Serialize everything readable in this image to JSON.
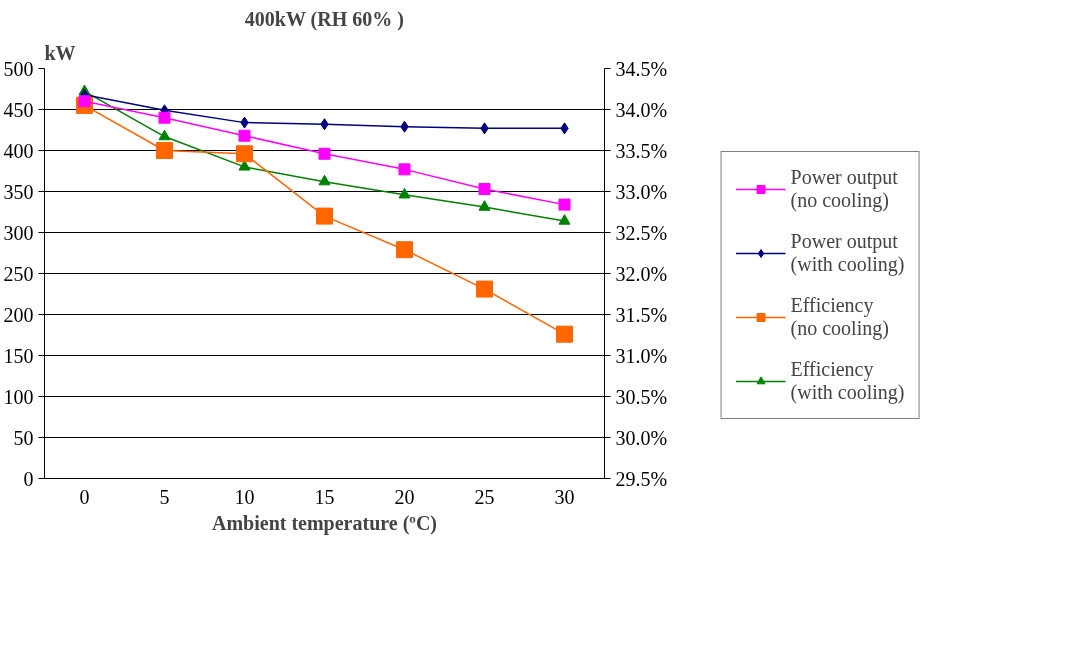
{
  "chart_data": {
    "type": "line",
    "title": "400kW (RH 60% )",
    "xlabel": "Ambient temperature (ºC)",
    "ylabel": "kW",
    "categories": [
      "0",
      "5",
      "10",
      "15",
      "20",
      "25",
      "30"
    ],
    "ylim": [
      0,
      500
    ],
    "yticks": [
      0,
      50,
      100,
      150,
      200,
      250,
      300,
      350,
      400,
      450,
      500
    ],
    "y2lim": [
      29.5,
      34.5
    ],
    "y2ticks": [
      {
        "value": 29.5,
        "label": "29.5%"
      },
      {
        "value": 30.0,
        "label": "30.0%"
      },
      {
        "value": 30.5,
        "label": "30.5%"
      },
      {
        "value": 31.0,
        "label": "31.0%"
      },
      {
        "value": 31.5,
        "label": "31.5%"
      },
      {
        "value": 32.0,
        "label": "32.0%"
      },
      {
        "value": 32.5,
        "label": "32.5%"
      },
      {
        "value": 33.0,
        "label": "33.0%"
      },
      {
        "value": 33.5,
        "label": "33.5%"
      },
      {
        "value": 34.0,
        "label": "34.0%"
      },
      {
        "value": 34.5,
        "label": "34.5%"
      }
    ],
    "grid": "y",
    "legend": "right",
    "series": [
      {
        "name": "Power output (no cooling)",
        "color": "#ff00ff",
        "marker": "square",
        "values": [
          460,
          440,
          418,
          396,
          377,
          353,
          334
        ]
      },
      {
        "name": "Power output (with cooling)",
        "color": "#000080",
        "marker": "diamond",
        "values": [
          468,
          449,
          434,
          432,
          429,
          427,
          427
        ]
      },
      {
        "name": "Efficiency (no cooling)",
        "color": "#ff6600",
        "marker": "square",
        "axis": "y2",
        "values": [
          34.05,
          33.5,
          33.46,
          32.7,
          32.29,
          31.81,
          31.26
        ]
      },
      {
        "name": "Efficiency (with cooling)",
        "color": "#008000",
        "marker": "triangle",
        "axis": "y2",
        "values": [
          34.22,
          33.67,
          33.3,
          33.12,
          32.96,
          32.81,
          32.64
        ]
      }
    ]
  }
}
